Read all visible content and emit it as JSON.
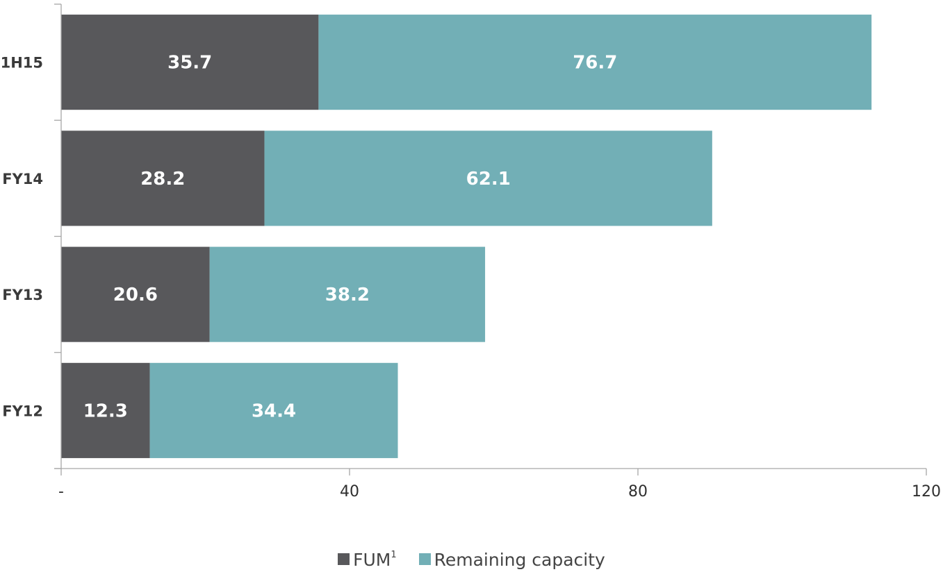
{
  "chart_data": {
    "type": "bar",
    "orientation": "horizontal",
    "stacked": true,
    "categories": [
      "1H15",
      "FY14",
      "FY13",
      "FY12"
    ],
    "series": [
      {
        "name": "FUM",
        "name_sup": "1",
        "color": "#58585b",
        "values": [
          35.7,
          28.2,
          20.6,
          12.3
        ]
      },
      {
        "name": "Remaining capacity",
        "color": "#72afb6",
        "values": [
          76.7,
          62.1,
          38.2,
          34.4
        ]
      }
    ],
    "xlim": [
      0,
      120
    ],
    "x_ticks": [
      0,
      40,
      80,
      120
    ],
    "x_tick_labels": [
      "-",
      "40",
      "80",
      "120"
    ],
    "title": "",
    "xlabel": "",
    "ylabel": "",
    "grid": false,
    "legend_position": "bottom-center"
  }
}
